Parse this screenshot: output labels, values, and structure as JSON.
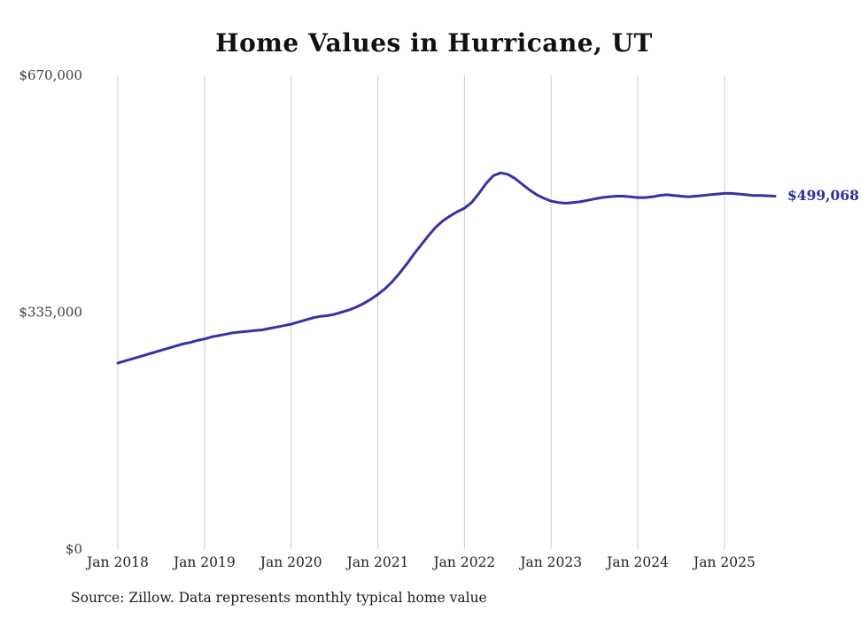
{
  "title": "Home Values in Hurricane, UT",
  "source_note": "Source: Zillow. Data represents monthly typical home value",
  "end_label": "$499,068",
  "colors": {
    "line": "#3632a8",
    "end_label": "#2e2e9f",
    "grid": "#cccccc",
    "tick_text": "#3d3d3d",
    "title_text": "#111111"
  },
  "chart_data": {
    "type": "line",
    "title": "Home Values in Hurricane, UT",
    "xlabel": "",
    "ylabel": "",
    "ylim": [
      0,
      670000
    ],
    "grid": "vertical",
    "legend": "none",
    "yticks": {
      "values": [
        0,
        335000,
        670000
      ],
      "labels": [
        "$0",
        "$335,000",
        "$670,000"
      ]
    },
    "xticks": {
      "month_indices": [
        0,
        12,
        24,
        36,
        48,
        60,
        72,
        84
      ],
      "labels": [
        "Jan 2018",
        "Jan 2019",
        "Jan 2020",
        "Jan 2021",
        "Jan 2022",
        "Jan 2023",
        "Jan 2024",
        "Jan 2025"
      ]
    },
    "series": [
      {
        "name": "Typical home value",
        "start_month": "2018-01",
        "frequency": "monthly",
        "values": [
          263000,
          266000,
          269000,
          272000,
          275000,
          278000,
          281000,
          284000,
          287000,
          290000,
          292000,
          295000,
          297000,
          300000,
          302000,
          304000,
          306000,
          307000,
          308000,
          309000,
          310000,
          312000,
          314000,
          316000,
          318000,
          321000,
          324000,
          327000,
          329000,
          330000,
          332000,
          335000,
          338000,
          342000,
          347000,
          353000,
          360000,
          368000,
          378000,
          390000,
          403000,
          417000,
          430000,
          443000,
          455000,
          464000,
          471000,
          477000,
          482000,
          490000,
          503000,
          517000,
          528000,
          532000,
          530000,
          524000,
          516000,
          508000,
          501000,
          496000,
          492000,
          490000,
          489000,
          490000,
          491000,
          493000,
          495000,
          497000,
          498000,
          499000,
          499000,
          498000,
          497000,
          497000,
          498000,
          500000,
          501000,
          500000,
          499000,
          498000,
          499000,
          500000,
          501000,
          502000,
          503000,
          503000,
          502000,
          501000,
          500000,
          500000,
          499500,
          499068
        ]
      }
    ],
    "end_value": 499068,
    "end_value_label": "$499,068"
  }
}
